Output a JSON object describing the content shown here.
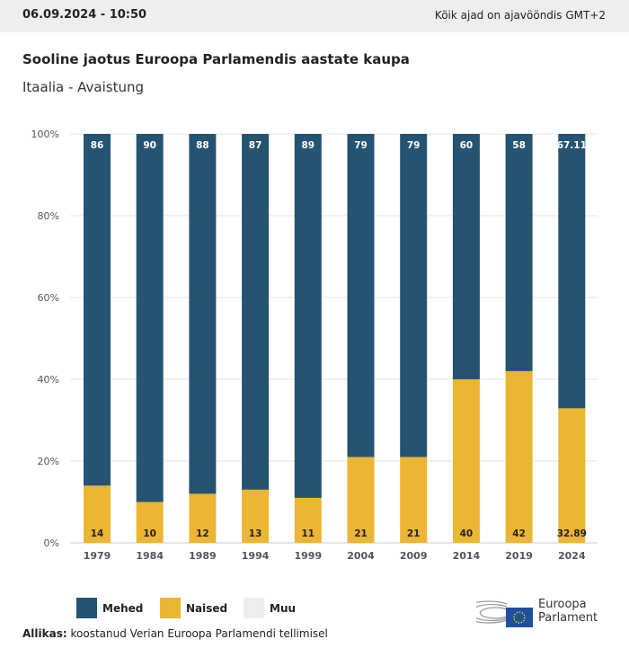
{
  "header": {
    "datetime": "06.09.2024 - 10:50",
    "timezone": "Kõik ajad on ajavööndis GMT+2"
  },
  "chart_data": {
    "type": "bar",
    "stacked": true,
    "title": "Sooline jaotus Euroopa Parlamendis aastate kaupa",
    "subtitle": "Itaalia - Avaistung",
    "categories": [
      "1979",
      "1984",
      "1989",
      "1994",
      "1999",
      "2004",
      "2009",
      "2014",
      "2019",
      "2024"
    ],
    "series": [
      {
        "name": "Mehed",
        "color": "#255372",
        "values": [
          86,
          90,
          88,
          87,
          89,
          79,
          79,
          60,
          58,
          67.11
        ]
      },
      {
        "name": "Naised",
        "color": "#ecb533",
        "values": [
          14,
          10,
          12,
          13,
          11,
          21,
          21,
          40,
          42,
          32.89
        ]
      },
      {
        "name": "Muu",
        "color": "#ededed",
        "values": [
          0,
          0,
          0,
          0,
          0,
          0,
          0,
          0,
          0,
          0
        ]
      }
    ],
    "ylim": [
      0,
      100
    ],
    "yticks": [
      "0%",
      "20%",
      "40%",
      "60%",
      "80%",
      "100%"
    ],
    "grid": true,
    "legend": "bottom-left"
  },
  "source": {
    "label": "Allikas:",
    "text": "koostanud Verian Euroopa Parlamendi tellimisel"
  },
  "logo": {
    "line1": "Euroopa",
    "line2": "Parlament"
  }
}
